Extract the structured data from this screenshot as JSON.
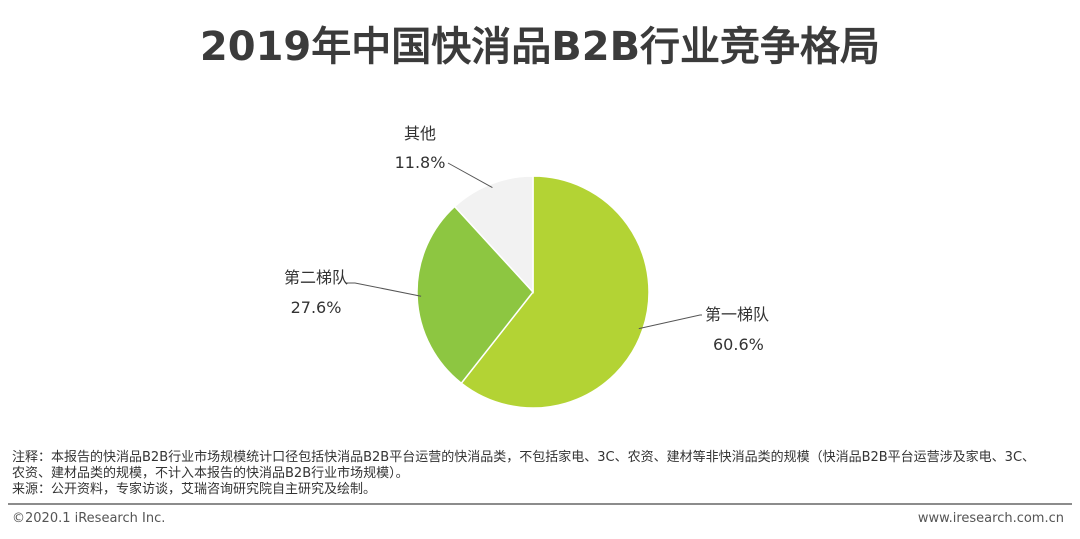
{
  "title": "2019年中国快消品B2B行业竞争格局",
  "chart_data": {
    "type": "pie",
    "title": "2019年中国快消品B2B行业竞争格局",
    "slices": [
      {
        "label": "第一梯队",
        "value": 60.6,
        "display": "60.6%",
        "color": "#b3d334"
      },
      {
        "label": "第二梯队",
        "value": 27.6,
        "display": "27.6%",
        "color": "#8dc641"
      },
      {
        "label": "其他",
        "value": 11.8,
        "display": "11.8%",
        "color": "#f2f2f2"
      }
    ],
    "start": "12 o'clock",
    "direction": "clockwise"
  },
  "notes": {
    "line1": "注释：本报告的快消品B2B行业市场规模统计口径包括快消品B2B平台运营的快消品类，不包括家电、3C、农资、建材等非快消品类的规模（快消品B2B平台运营涉及家电、3C、",
    "line2": "农资、建材品类的规模，不计入本报告的快消品B2B行业市场规模）。",
    "source": "来源：公开资料，专家访谈，艾瑞咨询研究院自主研究及绘制。"
  },
  "footer": {
    "copyright": "©2020.1 iResearch Inc.",
    "website": "www.iresearch.com.cn"
  }
}
